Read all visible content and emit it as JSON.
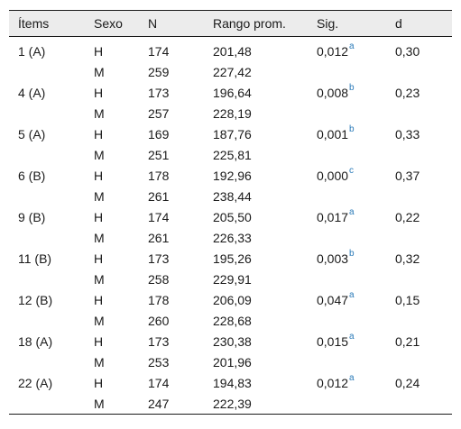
{
  "columns": [
    "Ítems",
    "Sexo",
    "N",
    "Rango prom.",
    "Sig.",
    "d"
  ],
  "rows": [
    {
      "item": "1 (A)",
      "h": {
        "sexo": "H",
        "n": "174",
        "rango": "201,48"
      },
      "m": {
        "sexo": "M",
        "n": "259",
        "rango": "227,42"
      },
      "sig": "0,012",
      "sup": "a",
      "d": "0,30"
    },
    {
      "item": "4 (A)",
      "h": {
        "sexo": "H",
        "n": "173",
        "rango": "196,64"
      },
      "m": {
        "sexo": "M",
        "n": "257",
        "rango": "228,19"
      },
      "sig": "0,008",
      "sup": "b",
      "d": "0,23"
    },
    {
      "item": "5 (A)",
      "h": {
        "sexo": "H",
        "n": "169",
        "rango": "187,76"
      },
      "m": {
        "sexo": "M",
        "n": "251",
        "rango": "225,81"
      },
      "sig": "0,001",
      "sup": "b",
      "d": "0,33"
    },
    {
      "item": "6 (B)",
      "h": {
        "sexo": "H",
        "n": "178",
        "rango": "192,96"
      },
      "m": {
        "sexo": "M",
        "n": "261",
        "rango": "238,44"
      },
      "sig": "0,000",
      "sup": "c",
      "d": "0,37"
    },
    {
      "item": "9 (B)",
      "h": {
        "sexo": "H",
        "n": "174",
        "rango": "205,50"
      },
      "m": {
        "sexo": "M",
        "n": "261",
        "rango": "226,33"
      },
      "sig": "0,017",
      "sup": "a",
      "d": "0,22"
    },
    {
      "item": "11 (B)",
      "h": {
        "sexo": "H",
        "n": "173",
        "rango": "195,26"
      },
      "m": {
        "sexo": "M",
        "n": "258",
        "rango": "229,91"
      },
      "sig": "0,003",
      "sup": "b",
      "d": "0,32"
    },
    {
      "item": "12 (B)",
      "h": {
        "sexo": "H",
        "n": "178",
        "rango": "206,09"
      },
      "m": {
        "sexo": "M",
        "n": "260",
        "rango": "228,68"
      },
      "sig": "0,047",
      "sup": "a",
      "d": "0,15"
    },
    {
      "item": "18 (A)",
      "h": {
        "sexo": "H",
        "n": "173",
        "rango": "230,38"
      },
      "m": {
        "sexo": "M",
        "n": "253",
        "rango": "201,96"
      },
      "sig": "0,015",
      "sup": "a",
      "d": "0,21"
    },
    {
      "item": "22 (A)",
      "h": {
        "sexo": "H",
        "n": "174",
        "rango": "194,83"
      },
      "m": {
        "sexo": "M",
        "n": "247",
        "rango": "222,39"
      },
      "sig": "0,012",
      "sup": "a",
      "d": "0,24"
    }
  ],
  "colors": {
    "header_bg": "#ececec",
    "footnote_link": "#2a7ab8"
  }
}
